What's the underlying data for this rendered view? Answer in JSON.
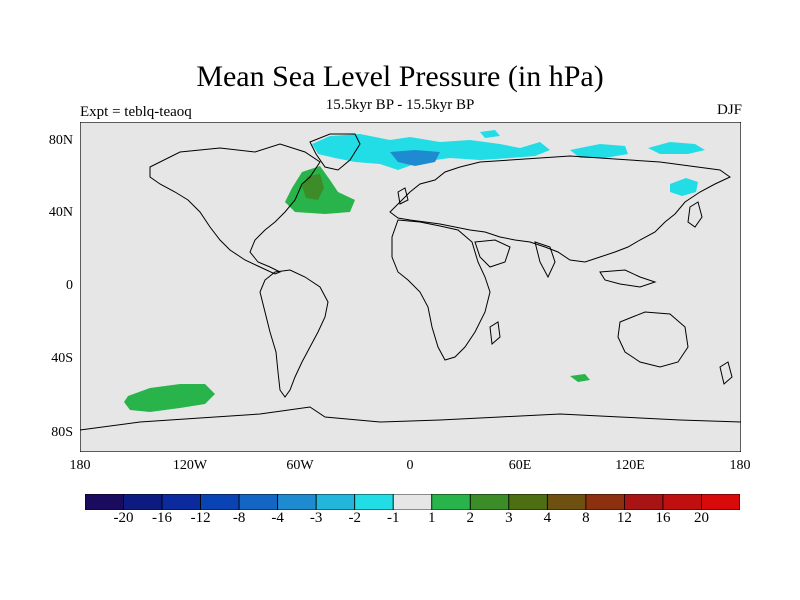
{
  "title": "Mean Sea Level Pressure (in hPa)",
  "subtitle": "15.5kyr BP - 15.5kyr BP",
  "left_label": "Expt = teblq-teaoq",
  "right_label": "DJF",
  "axes": {
    "y_ticks": [
      "80N",
      "40N",
      "0",
      "40S",
      "80S"
    ],
    "x_ticks": [
      "180",
      "120W",
      "60W",
      "0",
      "60E",
      "120E",
      "180"
    ]
  },
  "colorbar": {
    "labels": [
      "-20",
      "-16",
      "-12",
      "-8",
      "-4",
      "-3",
      "-2",
      "-1",
      "1",
      "2",
      "3",
      "4",
      "8",
      "12",
      "16",
      "20"
    ],
    "colors": [
      "#1a0b5e",
      "#0d1a80",
      "#0a2a9e",
      "#0a44b4",
      "#1466c4",
      "#1e8bd0",
      "#22b6dc",
      "#22dde6",
      "#e6e6e6",
      "#28b44a",
      "#3c8c28",
      "#4e6e14",
      "#6e5010",
      "#8c3010",
      "#a81414",
      "#c00f0f",
      "#d80a0a"
    ]
  },
  "map": {
    "background": "#e6e6e6",
    "anomalies": [
      {
        "label": "North Atlantic positive",
        "color": "#28b44a"
      },
      {
        "label": "North Atlantic strong positive",
        "color": "#3c8c28"
      },
      {
        "label": "South Pacific positive",
        "color": "#28b44a"
      },
      {
        "label": "Southern Indian Ocean positive",
        "color": "#28b44a"
      },
      {
        "label": "Arctic negative",
        "color": "#22dde6"
      },
      {
        "label": "Barents negative",
        "color": "#1e8bd0"
      },
      {
        "label": "Kamchatka negative",
        "color": "#22dde6"
      }
    ]
  }
}
